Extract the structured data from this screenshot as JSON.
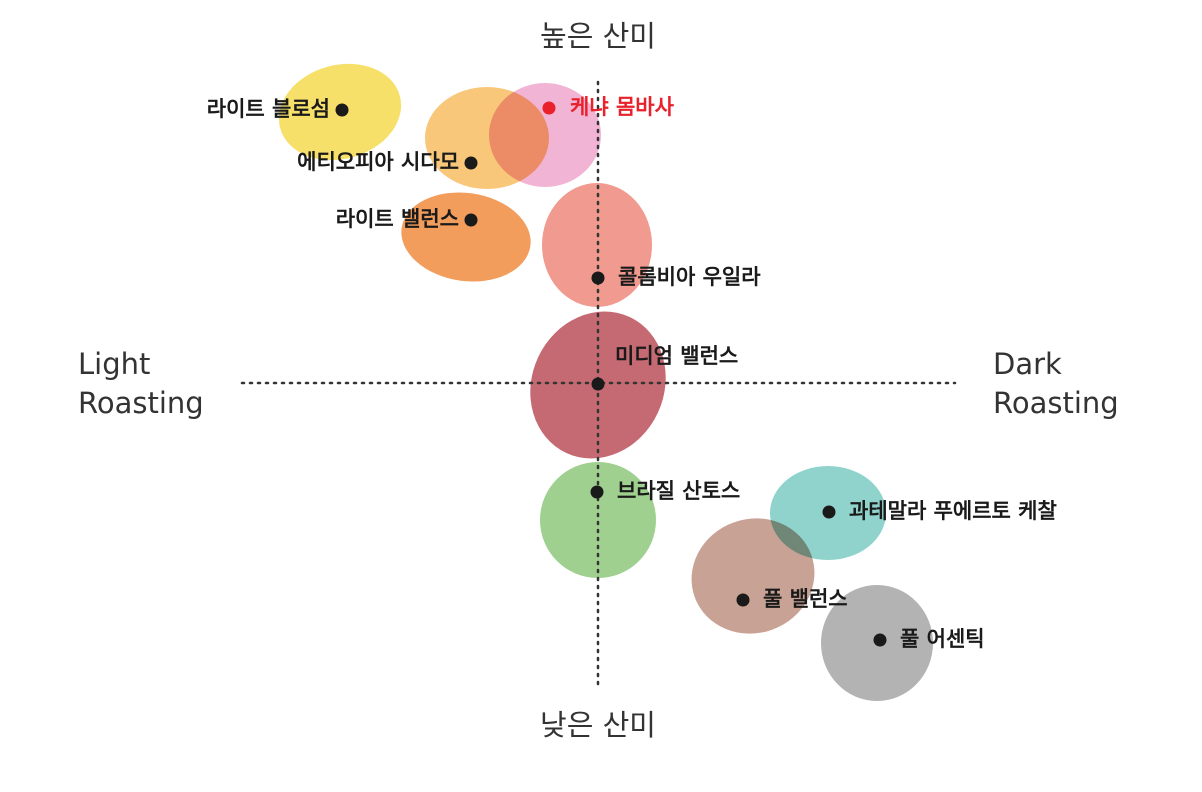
{
  "axes": {
    "top": "높은 산미",
    "bottom": "낮은 산미",
    "left": [
      "Light",
      "Roasting"
    ],
    "right": [
      "Dark",
      "Roasting"
    ]
  },
  "nodes": [
    {
      "label": "라이트 블로섬"
    },
    {
      "label": "케냐 몸바사"
    },
    {
      "label": "에티오피아 시다모"
    },
    {
      "label": "라이트 밸런스"
    },
    {
      "label": "콜롬비아 우일라"
    },
    {
      "label": "미디엄 밸런스"
    },
    {
      "label": "브라질 산토스"
    },
    {
      "label": "과테말라 푸에르토 케찰"
    },
    {
      "label": "풀 밸런스"
    },
    {
      "label": "풀 어센틱"
    }
  ]
}
